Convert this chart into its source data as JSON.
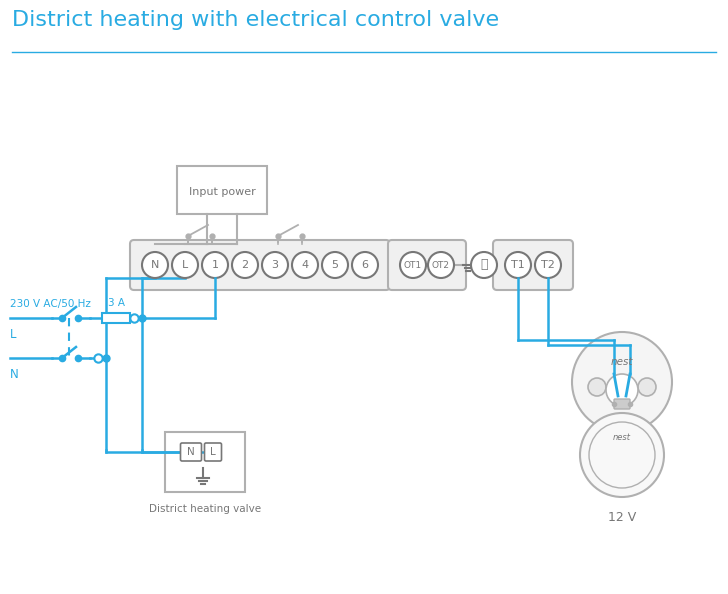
{
  "title": "District heating with electrical control valve",
  "title_color": "#29abe2",
  "title_fontsize": 16,
  "bg_color": "#ffffff",
  "line_color": "#29abe2",
  "gray_color": "#b0b0b0",
  "dark_gray": "#777777",
  "label_230v": "230 V AC/50 Hz",
  "label_L": "L",
  "label_N": "N",
  "label_3A": "3 A",
  "label_input_power": "Input power",
  "label_dhv": "District heating valve",
  "label_12v": "12 V",
  "label_nest": "nest"
}
